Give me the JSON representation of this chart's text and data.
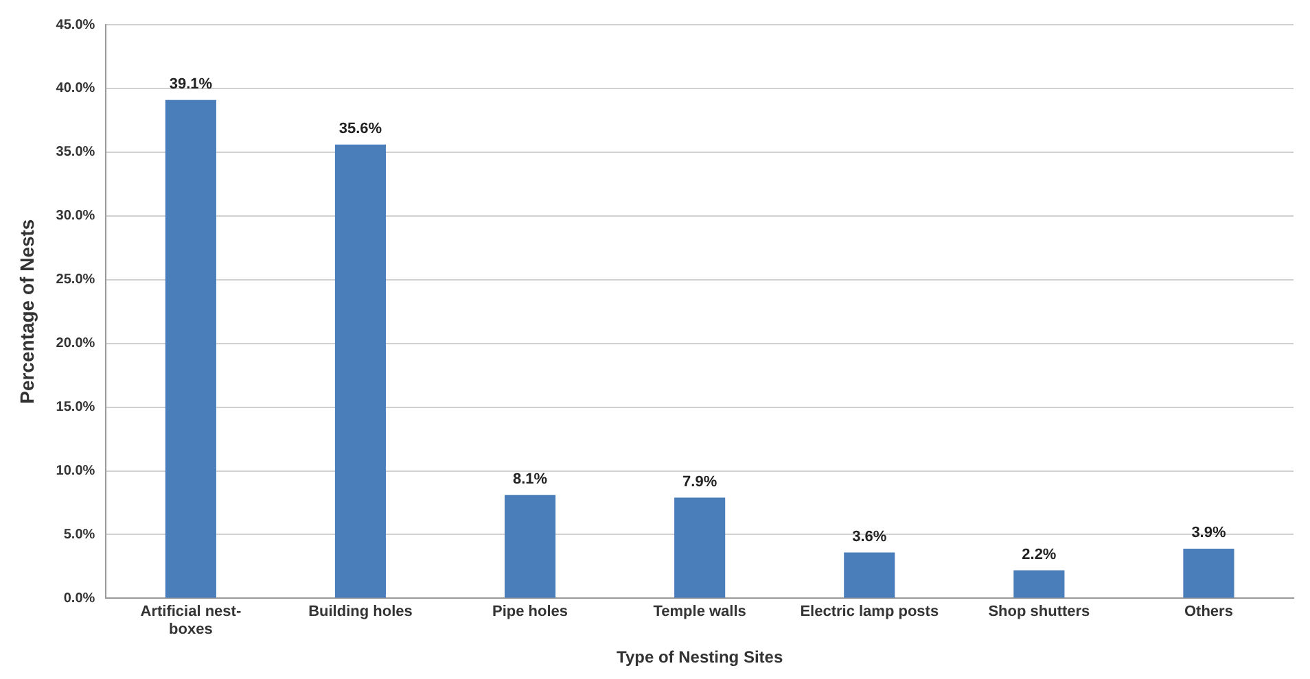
{
  "chart_data": {
    "type": "bar",
    "xlabel": "Type of Nesting Sites",
    "ylabel": "Percentage of Nests",
    "categories": [
      [
        "Artificial nest-",
        "boxes"
      ],
      "Building holes",
      "Pipe holes",
      "Temple walls",
      "Electric lamp posts",
      "Shop shutters",
      "Others"
    ],
    "values": [
      39.1,
      35.6,
      8.1,
      7.9,
      3.6,
      2.2,
      3.9
    ],
    "value_labels": [
      "39.1%",
      "35.6%",
      "8.1%",
      "7.9%",
      "3.6%",
      "2.2%",
      "3.9%"
    ],
    "color": "#4a7ebb",
    "ylim": [
      0,
      45
    ],
    "yticks": [
      {
        "value": 0,
        "label": "0.0%"
      },
      {
        "value": 5,
        "label": "5.0%"
      },
      {
        "value": 10,
        "label": "10.0%"
      },
      {
        "value": 15,
        "label": "15.0%"
      },
      {
        "value": 20,
        "label": "20.0%"
      },
      {
        "value": 25,
        "label": "25.0%"
      },
      {
        "value": 30,
        "label": "30.0%"
      },
      {
        "value": 35,
        "label": "35.0%"
      },
      {
        "value": 40,
        "label": "40.0%"
      },
      {
        "value": 45,
        "label": "45.0%"
      }
    ],
    "grid": "y"
  }
}
